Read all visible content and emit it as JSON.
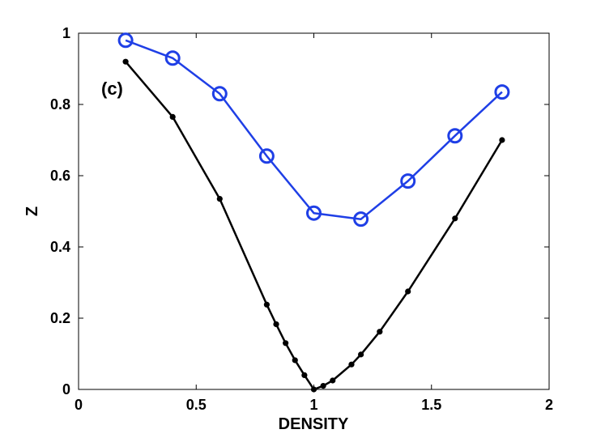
{
  "chart_data": {
    "type": "line",
    "title": "",
    "panel_label": "(c)",
    "xlabel": "DENSITY",
    "ylabel": "Z",
    "xlim": [
      0,
      2
    ],
    "ylim": [
      0,
      1
    ],
    "grid": false,
    "x_ticks": [
      0,
      0.5,
      1,
      1.5,
      2
    ],
    "x_tick_labels": [
      "0",
      "0.5",
      "1",
      "1.5",
      "2"
    ],
    "y_ticks": [
      0,
      0.2,
      0.4,
      0.6,
      0.8,
      1
    ],
    "y_tick_labels": [
      "0",
      "0.2",
      "0.4",
      "0.6",
      "0.8",
      "1"
    ],
    "series": [
      {
        "name": "blue-circles",
        "color": "#1f3fe6",
        "marker": "open-circle",
        "x": [
          0.2,
          0.4,
          0.6,
          0.8,
          1.0,
          1.2,
          1.4,
          1.6,
          1.8
        ],
        "y": [
          0.98,
          0.93,
          0.83,
          0.655,
          0.495,
          0.478,
          0.585,
          0.712,
          0.835
        ]
      },
      {
        "name": "black-dots",
        "color": "#000000",
        "marker": "filled-dot",
        "x": [
          0.2,
          0.4,
          0.6,
          0.8,
          0.84,
          0.88,
          0.92,
          0.96,
          1.0,
          1.04,
          1.08,
          1.16,
          1.2,
          1.28,
          1.4,
          1.6,
          1.8
        ],
        "y": [
          0.92,
          0.765,
          0.535,
          0.238,
          0.183,
          0.13,
          0.082,
          0.04,
          0.0,
          0.01,
          0.025,
          0.07,
          0.098,
          0.162,
          0.275,
          0.48,
          0.7
        ]
      }
    ]
  }
}
